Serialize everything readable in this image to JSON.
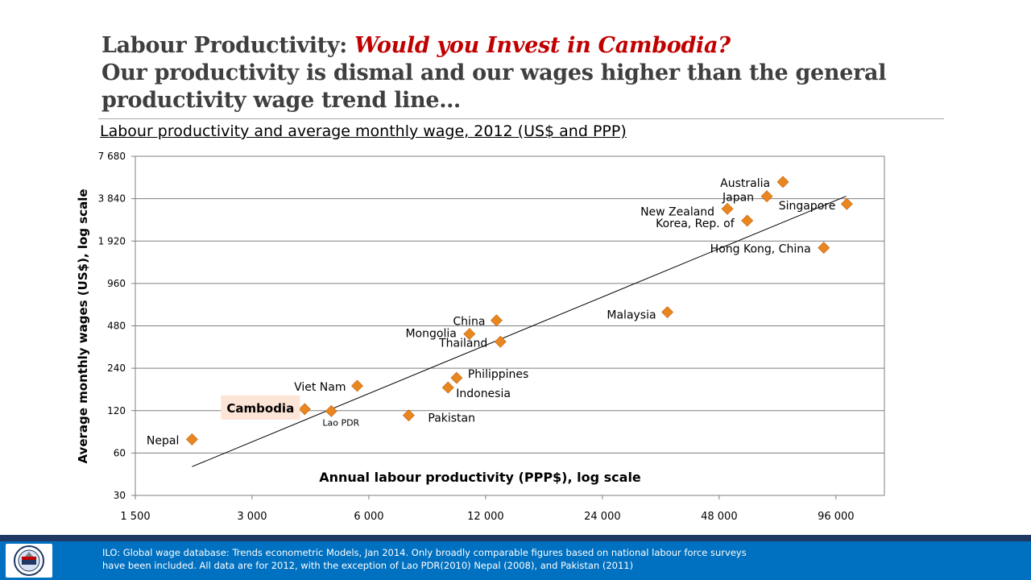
{
  "header": {
    "title_prefix": "Labour Productivity:",
    "title_highlight": "Would you Invest in Cambodia?",
    "title_line2": "Our productivity is dismal and our wages higher than the general productivity wage trend line…"
  },
  "chart_data": {
    "type": "scatter",
    "title": "Labour productivity and average monthly wage, 2012 (US$ and PPP)",
    "xlabel": "Annual labour productivity (PPP$), log scale",
    "ylabel": "Average monthly wages (US$), log scale",
    "x_scale": "log",
    "y_scale": "log",
    "xlim": [
      1500,
      128000
    ],
    "ylim": [
      30,
      7680
    ],
    "x_ticks": [
      1500,
      3000,
      6000,
      12000,
      24000,
      48000,
      96000
    ],
    "x_tick_labels": [
      "1 500",
      "3 000",
      "6 000",
      "12 000",
      "24 000",
      "48 000",
      "96 000"
    ],
    "y_ticks": [
      30,
      60,
      120,
      240,
      480,
      960,
      1920,
      3840,
      7680
    ],
    "y_tick_labels": [
      "30",
      "60",
      "120",
      "240",
      "480",
      "960",
      "1 920",
      "3 840",
      "7 680"
    ],
    "grid": "horizontal",
    "marker_color": "#e8871e",
    "highlight_color": "#fce4d6",
    "points": [
      {
        "label": "Nepal",
        "x": 2100,
        "y": 75
      },
      {
        "label": "Cambodia",
        "x": 4100,
        "y": 123,
        "highlight": true
      },
      {
        "label": "Lao PDR",
        "x": 4800,
        "y": 119
      },
      {
        "label": "Viet Nam",
        "x": 5600,
        "y": 180
      },
      {
        "label": "Pakistan",
        "x": 7600,
        "y": 111
      },
      {
        "label": "Indonesia",
        "x": 9600,
        "y": 175
      },
      {
        "label": "Philippines",
        "x": 10100,
        "y": 205
      },
      {
        "label": "Mongolia",
        "x": 10900,
        "y": 420
      },
      {
        "label": "China",
        "x": 12800,
        "y": 525
      },
      {
        "label": "Thailand",
        "x": 13100,
        "y": 370
      },
      {
        "label": "Malaysia",
        "x": 35300,
        "y": 600
      },
      {
        "label": "New Zealand",
        "x": 50400,
        "y": 3250
      },
      {
        "label": "Korea, Rep. of",
        "x": 56700,
        "y": 2680
      },
      {
        "label": "Japan",
        "x": 63700,
        "y": 3990
      },
      {
        "label": "Australia",
        "x": 70100,
        "y": 5050
      },
      {
        "label": "Hong Kong, China",
        "x": 89300,
        "y": 1720
      },
      {
        "label": "Singapore",
        "x": 102400,
        "y": 3520
      }
    ],
    "trend_line": {
      "x": [
        2100,
        102000
      ],
      "y": [
        48,
        4000
      ]
    }
  },
  "footer": {
    "source_text": "ILO: Global wage database: Trends econometric Models, Jan 2014.  Only broadly comparable figures based on national labour force surveys have been included. All data are for 2012,  with the exception of Lao PDR(2010) Nepal (2008), and Pakistan (2011)"
  },
  "logo_icon": "organization-seal-icon"
}
